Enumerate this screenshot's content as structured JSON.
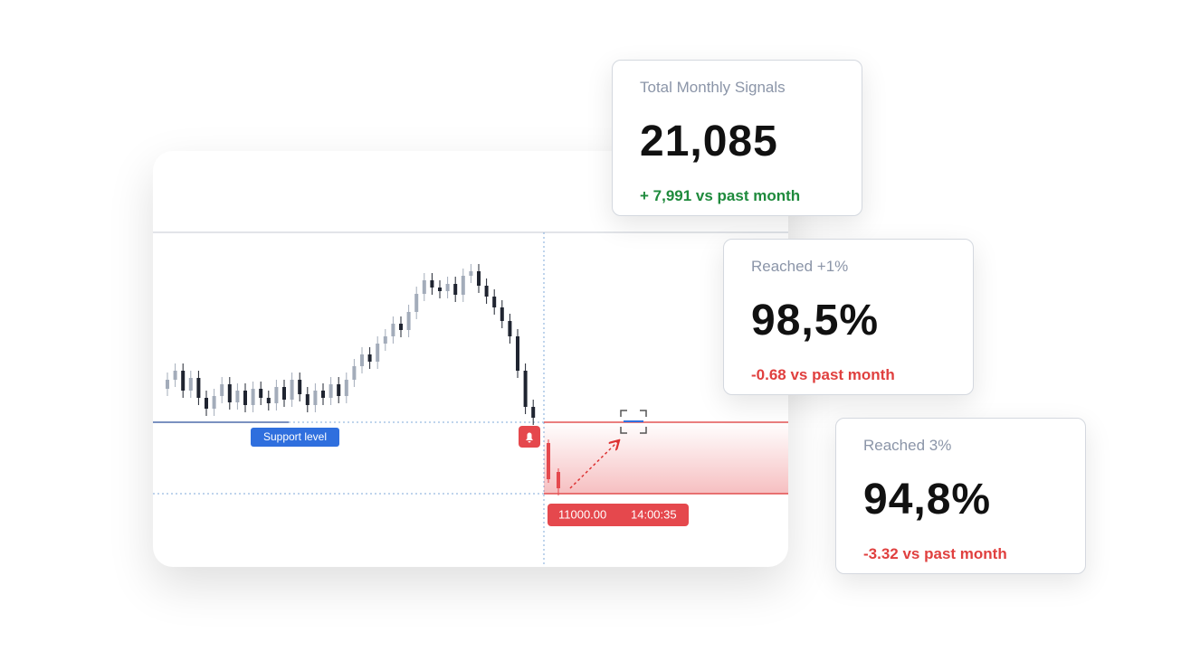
{
  "chart_data": {
    "type": "candlestick",
    "ylim": [
      10190,
      14790
    ],
    "series": [
      {
        "color": "#a3acba",
        "down_color": "#1f2430",
        "open": [
          12160,
          12260,
          12360,
          12140,
          12280,
          12060,
          11940,
          12080,
          12210,
          12010,
          12140,
          11980,
          12160,
          12060,
          12000,
          12180,
          12040,
          12260,
          12100,
          11980,
          12140,
          12060,
          12210,
          12080,
          12260,
          12410,
          12540,
          12460,
          12660,
          12740,
          12880,
          12810,
          13010,
          13210,
          13360,
          13280,
          13240,
          13320,
          13200,
          13410,
          13460,
          13300,
          13180,
          13060,
          12910,
          12740,
          12360,
          11960
        ],
        "high": [
          12340,
          12440,
          12440,
          12360,
          12360,
          12140,
          12160,
          12290,
          12290,
          12220,
          12220,
          12240,
          12240,
          12140,
          12260,
          12260,
          12340,
          12340,
          12180,
          12220,
          12220,
          12290,
          12290,
          12340,
          12490,
          12620,
          12620,
          12740,
          12820,
          12960,
          12960,
          13090,
          13290,
          13440,
          13440,
          13360,
          13400,
          13400,
          13490,
          13540,
          13540,
          13380,
          13260,
          13140,
          12990,
          12820,
          12440,
          12040
        ],
        "low": [
          12080,
          12180,
          12060,
          12060,
          11980,
          11860,
          11860,
          12000,
          11930,
          11930,
          11900,
          11900,
          11980,
          11920,
          11920,
          11960,
          11960,
          12020,
          11900,
          11900,
          11980,
          11980,
          12000,
          12000,
          12180,
          12330,
          12380,
          12380,
          12580,
          12660,
          12730,
          12730,
          12930,
          13130,
          13200,
          13160,
          13160,
          13120,
          13120,
          13330,
          13220,
          13100,
          12980,
          12830,
          12660,
          12280,
          11880,
          11760
        ],
        "close": [
          12260,
          12360,
          12140,
          12280,
          12060,
          11940,
          12080,
          12210,
          12010,
          12140,
          11980,
          12160,
          12060,
          12000,
          12180,
          12040,
          12260,
          12100,
          11980,
          12140,
          12060,
          12210,
          12080,
          12260,
          12410,
          12540,
          12460,
          12660,
          12740,
          12880,
          12810,
          13010,
          13210,
          13360,
          13280,
          13240,
          13320,
          13200,
          13410,
          13460,
          13300,
          13180,
          13060,
          12910,
          12740,
          12360,
          11960,
          11840
        ]
      },
      {
        "color": "#e5484d",
        "down_color": "#e5484d",
        "open": [
          11560,
          11240
        ],
        "high": [
          11600,
          11280
        ],
        "low": [
          11120,
          10980
        ],
        "close": [
          11160,
          11060
        ]
      }
    ],
    "support": {
      "label": "Support level",
      "value": 11790
    },
    "price_line": {
      "value": 11000,
      "label": "11000.00",
      "time": "14:00:35"
    }
  },
  "cards": [
    {
      "title": "Total Monthly Signals",
      "value": "21,085",
      "change": "+ 7,991 vs past month",
      "color": "#1e8a3c"
    },
    {
      "title": "Reached +1%",
      "value": "98,5%",
      "change": "-0.68 vs past month",
      "color": "#e0403f"
    },
    {
      "title": "Reached 3%",
      "value": "94,8%",
      "change": "-3.32 vs past month",
      "color": "#e0403f"
    }
  ]
}
